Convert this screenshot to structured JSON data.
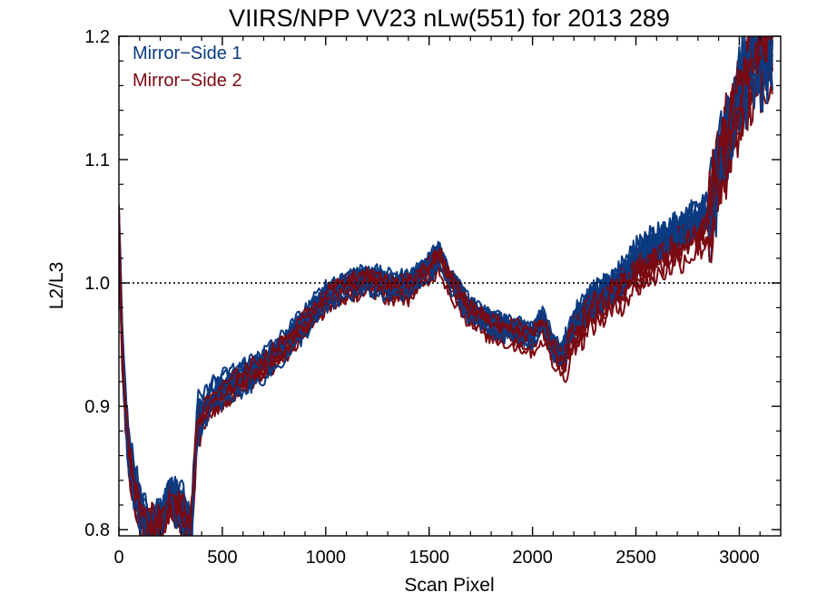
{
  "chart_data": {
    "type": "line",
    "title": "VIIRS/NPP VV23 nLw(551) for 2013 289",
    "xlabel": "Scan Pixel",
    "ylabel": "L2/L3",
    "xlim": [
      0,
      3200
    ],
    "ylim": [
      0.795,
      1.2
    ],
    "xticks": [
      0,
      500,
      1000,
      1500,
      2000,
      2500,
      3000
    ],
    "xtick_labels": [
      "0",
      "500",
      "1000",
      "1500",
      "2000",
      "2500",
      "3000"
    ],
    "yticks": [
      0.8,
      0.9,
      1.0,
      1.1,
      1.2
    ],
    "ytick_labels": [
      "0.8",
      "0.9",
      "1.0",
      "1.1",
      "1.2"
    ],
    "reference_line": {
      "y": 1.0,
      "style": "dotted"
    },
    "legend_position": "top-left",
    "lines_per_series": 10,
    "series": [
      {
        "name": "Mirror−Side 1",
        "color": "#0b3a80",
        "x": [
          0,
          20,
          50,
          100,
          150,
          200,
          250,
          300,
          350,
          380,
          450,
          500,
          600,
          700,
          800,
          900,
          1000,
          1100,
          1200,
          1300,
          1400,
          1500,
          1550,
          1600,
          1700,
          1800,
          1900,
          2000,
          2050,
          2100,
          2150,
          2200,
          2300,
          2400,
          2500,
          2600,
          2700,
          2800,
          2850,
          2900,
          2950,
          3000,
          3050,
          3100,
          3150
        ],
        "y": [
          1.05,
          0.93,
          0.86,
          0.82,
          0.8,
          0.81,
          0.83,
          0.82,
          0.8,
          0.89,
          0.91,
          0.915,
          0.925,
          0.935,
          0.95,
          0.97,
          0.99,
          1.0,
          1.005,
          1.0,
          1.0,
          1.015,
          1.025,
          1.005,
          0.98,
          0.97,
          0.965,
          0.96,
          0.975,
          0.95,
          0.945,
          0.97,
          0.99,
          1.0,
          1.025,
          1.035,
          1.045,
          1.055,
          1.06,
          1.1,
          1.13,
          1.16,
          1.18,
          1.19,
          1.2
        ]
      },
      {
        "name": "Mirror−Side 2",
        "color": "#7a0a12",
        "x": [
          0,
          20,
          50,
          100,
          150,
          200,
          250,
          300,
          350,
          380,
          450,
          500,
          600,
          700,
          800,
          900,
          1000,
          1100,
          1200,
          1300,
          1400,
          1500,
          1550,
          1600,
          1700,
          1800,
          1900,
          2000,
          2050,
          2100,
          2150,
          2200,
          2300,
          2400,
          2500,
          2600,
          2700,
          2800,
          2850,
          2900,
          2950,
          3000,
          3050,
          3100,
          3150
        ],
        "y": [
          1.04,
          0.92,
          0.85,
          0.81,
          0.8,
          0.8,
          0.82,
          0.81,
          0.8,
          0.88,
          0.9,
          0.905,
          0.92,
          0.93,
          0.945,
          0.965,
          0.985,
          0.995,
          1.0,
          0.995,
          0.995,
          1.01,
          1.02,
          1.0,
          0.975,
          0.965,
          0.96,
          0.955,
          0.965,
          0.945,
          0.935,
          0.96,
          0.98,
          0.99,
          1.01,
          1.02,
          1.03,
          1.04,
          1.05,
          1.09,
          1.12,
          1.15,
          1.17,
          1.18,
          1.19
        ]
      }
    ]
  }
}
